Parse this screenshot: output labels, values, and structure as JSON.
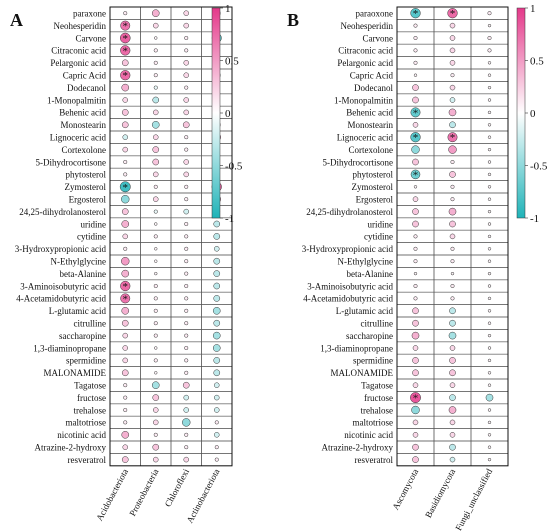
{
  "chart_data": [
    {
      "type": "heatmap",
      "panel_label": "A",
      "rows": [
        "paraxone",
        "Neohesperidin",
        "Carvone",
        "Citraconic acid",
        "Pelargonic acid",
        "Capric Acid",
        "Dodecanol",
        "1-Monopalmitin",
        "Behenic acid",
        "Monostearin",
        "Lignoceric acid",
        "Cortexolone",
        "5-Dihydrocortisone",
        "phytosterol",
        "Zymosterol",
        "Ergosterol",
        "24,25-dihydrolanosterol",
        "uridine",
        "cytidine",
        "3-Hydroxypropionic acid",
        "N-Ethylglycine",
        "beta-Alanine",
        "3-Aminoisobutyric acid",
        "4-Acetamidobutyric acid",
        "L-glutamic acid",
        "citrulline",
        "saccharopine",
        "1,3-diaminopropane",
        "spermidine",
        "MALONAMIDE",
        "Tagatose",
        "fructose",
        "trehalose",
        "maltotriose",
        "nicotinic acid",
        "Atrazine-2-hydroxy",
        "resveratrol"
      ],
      "columns": [
        "Acidobacteriota",
        "Proteobacteria",
        "Chloroflexi",
        "Actinobacteriota"
      ],
      "values": [
        [
          0.1,
          0.4,
          0.2,
          0.4
        ],
        [
          0.7,
          0.2,
          0.2,
          0.3
        ],
        [
          0.8,
          0.05,
          0.1,
          -0.7
        ],
        [
          0.75,
          0.1,
          0.1,
          0.3
        ],
        [
          0.3,
          0.1,
          0.2,
          0.1
        ],
        [
          0.75,
          0.1,
          0.2,
          -0.4
        ],
        [
          0.4,
          -0.1,
          0.1,
          0.2
        ],
        [
          0.2,
          -0.3,
          0.2,
          0.2
        ],
        [
          0.3,
          0.2,
          0.2,
          0.3
        ],
        [
          0.3,
          -0.4,
          0.3,
          0.4
        ],
        [
          -0.2,
          0.2,
          0.1,
          0.5
        ],
        [
          0.2,
          0.3,
          0.1,
          0.3
        ],
        [
          0.1,
          0.3,
          0.2,
          0.1
        ],
        [
          0.1,
          0.2,
          0.2,
          0.1
        ],
        [
          -0.85,
          0.1,
          0.1,
          0.75
        ],
        [
          -0.5,
          0.2,
          0.1,
          0.5
        ],
        [
          0.3,
          -0.1,
          -0.2,
          -0.3
        ],
        [
          0.4,
          0.05,
          0.1,
          -0.3
        ],
        [
          0.2,
          0.1,
          0.1,
          -0.3
        ],
        [
          0.1,
          0.05,
          0.1,
          -0.2
        ],
        [
          0.5,
          0.05,
          0.1,
          -0.3
        ],
        [
          0.4,
          0.05,
          0.1,
          -0.3
        ],
        [
          0.75,
          0.1,
          0.1,
          -0.3
        ],
        [
          0.7,
          0.1,
          0.1,
          -0.3
        ],
        [
          0.4,
          0.1,
          0.1,
          -0.4
        ],
        [
          0.3,
          0.1,
          0.1,
          -0.3
        ],
        [
          0.2,
          0.1,
          0.1,
          -0.4
        ],
        [
          0.2,
          0.05,
          0.1,
          -0.4
        ],
        [
          0.2,
          0.1,
          0.1,
          -0.3
        ],
        [
          0.3,
          0.05,
          0.1,
          -0.3
        ],
        [
          0.1,
          -0.4,
          0.3,
          -0.2
        ],
        [
          0.1,
          0.3,
          -0.2,
          -0.2
        ],
        [
          0.1,
          0.2,
          -0.2,
          -0.2
        ],
        [
          0.1,
          0.2,
          -0.5,
          0.1
        ],
        [
          0.4,
          0.1,
          0.1,
          -0.2
        ],
        [
          0.2,
          0.3,
          0.1,
          0.1
        ],
        [
          0.3,
          0.2,
          0.2,
          0.1
        ]
      ],
      "significant": [
        [
          false,
          false,
          false,
          false
        ],
        [
          true,
          false,
          false,
          false
        ],
        [
          true,
          false,
          false,
          true
        ],
        [
          true,
          false,
          false,
          false
        ],
        [
          false,
          false,
          false,
          false
        ],
        [
          true,
          false,
          false,
          false
        ],
        [
          false,
          false,
          false,
          false
        ],
        [
          false,
          false,
          false,
          false
        ],
        [
          false,
          false,
          false,
          false
        ],
        [
          false,
          false,
          false,
          false
        ],
        [
          false,
          false,
          false,
          false
        ],
        [
          false,
          false,
          false,
          false
        ],
        [
          false,
          false,
          false,
          false
        ],
        [
          false,
          false,
          false,
          false
        ],
        [
          true,
          false,
          false,
          true
        ],
        [
          false,
          false,
          false,
          false
        ],
        [
          false,
          false,
          false,
          false
        ],
        [
          false,
          false,
          false,
          false
        ],
        [
          false,
          false,
          false,
          false
        ],
        [
          false,
          false,
          false,
          false
        ],
        [
          false,
          false,
          false,
          false
        ],
        [
          false,
          false,
          false,
          false
        ],
        [
          true,
          false,
          false,
          false
        ],
        [
          true,
          false,
          false,
          false
        ],
        [
          false,
          false,
          false,
          false
        ],
        [
          false,
          false,
          false,
          false
        ],
        [
          false,
          false,
          false,
          false
        ],
        [
          false,
          false,
          false,
          false
        ],
        [
          false,
          false,
          false,
          false
        ],
        [
          false,
          false,
          false,
          false
        ],
        [
          false,
          false,
          false,
          false
        ],
        [
          false,
          false,
          false,
          false
        ],
        [
          false,
          false,
          false,
          false
        ],
        [
          false,
          false,
          false,
          false
        ],
        [
          false,
          false,
          false,
          false
        ],
        [
          false,
          false,
          false,
          false
        ],
        [
          false,
          false,
          false,
          false
        ]
      ],
      "colorbar": {
        "ticks": [
          1,
          0.5,
          0,
          -0.5,
          -1
        ],
        "tick_labels": [
          "1",
          "0.5",
          "0",
          "-0.5",
          "-1"
        ],
        "range": [
          -1,
          1
        ],
        "high_color": "#e4398a",
        "mid_color": "#ffffff",
        "low_color": "#1fb3b8"
      },
      "grid": true,
      "significance_marker": "*"
    },
    {
      "type": "heatmap",
      "panel_label": "B",
      "rows": [
        "paraoxone",
        "Neohesperidin",
        "Carvone",
        "Citraconic acid",
        "Pelargonic acid",
        "Capric Acid",
        "Dodecanol",
        "1-Monopalmitin",
        "Behenic acid",
        "Monostearin",
        "Lignoceric acid",
        "Cortexolone",
        "5-Dihydrocortisone",
        "phytosterol",
        "Zymosterol",
        "Ergosterol",
        "24,25-dihydrolanosterol",
        "uridine",
        "cytidine",
        "3-Hydroxypropionic acid",
        "N-Ethylglycine",
        "beta-Alanine",
        "3-Aminoisobutyric acid",
        "4-Acetamidobutyric acid",
        "L-glutamic acid",
        "citrulline",
        "saccharopine",
        "1,3-diaminopropane",
        "spermidine",
        "MALONAMIDE",
        "Tagatose",
        "fructose",
        "trehalose",
        "maltotriose",
        "nicotinic acid",
        "Atrazine-2-hydroxy",
        "resveratrol"
      ],
      "columns": [
        "Ascomycota",
        "Basidiomycota",
        "Fungi_unclassified"
      ],
      "values": [
        [
          -0.75,
          0.75,
          0.1
        ],
        [
          0.1,
          0.2,
          0.05
        ],
        [
          0.1,
          0.2,
          0.1
        ],
        [
          0.1,
          0.2,
          0.1
        ],
        [
          0.1,
          0.2,
          0.05
        ],
        [
          0.05,
          0.1,
          0.05
        ],
        [
          0.3,
          0.2,
          0.05
        ],
        [
          0.3,
          -0.2,
          0.05
        ],
        [
          -0.7,
          0.4,
          0.05
        ],
        [
          0.2,
          -0.3,
          0.05
        ],
        [
          -0.75,
          0.7,
          0.05
        ],
        [
          -0.5,
          0.5,
          0.05
        ],
        [
          0.3,
          0.1,
          0.05
        ],
        [
          -0.65,
          0.3,
          0.05
        ],
        [
          0.05,
          0.1,
          0.05
        ],
        [
          0.2,
          0.1,
          0.05
        ],
        [
          0.3,
          0.4,
          0.05
        ],
        [
          0.3,
          0.3,
          0.05
        ],
        [
          0.1,
          0.2,
          0.05
        ],
        [
          0.1,
          0.1,
          0.05
        ],
        [
          0.1,
          0.1,
          0.05
        ],
        [
          0.05,
          0.05,
          0.05
        ],
        [
          0.1,
          0.1,
          0.05
        ],
        [
          0.1,
          0.1,
          0.05
        ],
        [
          0.3,
          -0.3,
          0.05
        ],
        [
          0.3,
          -0.3,
          0.05
        ],
        [
          0.4,
          -0.4,
          0.05
        ],
        [
          0.2,
          0.2,
          0.05
        ],
        [
          0.3,
          0.3,
          0.05
        ],
        [
          0.3,
          0.3,
          0.05
        ],
        [
          0.2,
          0.2,
          0.05
        ],
        [
          0.85,
          -0.3,
          -0.4
        ],
        [
          -0.5,
          0.4,
          0.05
        ],
        [
          0.2,
          0.2,
          0.05
        ],
        [
          0.2,
          0.2,
          0.05
        ],
        [
          0.3,
          -0.3,
          0.05
        ],
        [
          0.3,
          -0.2,
          0.05
        ]
      ],
      "significant": [
        [
          true,
          true,
          false
        ],
        [
          false,
          false,
          false
        ],
        [
          false,
          false,
          false
        ],
        [
          false,
          false,
          false
        ],
        [
          false,
          false,
          false
        ],
        [
          false,
          false,
          false
        ],
        [
          false,
          false,
          false
        ],
        [
          false,
          false,
          false
        ],
        [
          true,
          false,
          false
        ],
        [
          false,
          false,
          false
        ],
        [
          true,
          true,
          false
        ],
        [
          false,
          false,
          false
        ],
        [
          false,
          false,
          false
        ],
        [
          true,
          false,
          false
        ],
        [
          false,
          false,
          false
        ],
        [
          false,
          false,
          false
        ],
        [
          false,
          false,
          false
        ],
        [
          false,
          false,
          false
        ],
        [
          false,
          false,
          false
        ],
        [
          false,
          false,
          false
        ],
        [
          false,
          false,
          false
        ],
        [
          false,
          false,
          false
        ],
        [
          false,
          false,
          false
        ],
        [
          false,
          false,
          false
        ],
        [
          false,
          false,
          false
        ],
        [
          false,
          false,
          false
        ],
        [
          false,
          false,
          false
        ],
        [
          false,
          false,
          false
        ],
        [
          false,
          false,
          false
        ],
        [
          false,
          false,
          false
        ],
        [
          false,
          false,
          false
        ],
        [
          true,
          false,
          false
        ],
        [
          false,
          false,
          false
        ],
        [
          false,
          false,
          false
        ],
        [
          false,
          false,
          false
        ],
        [
          false,
          false,
          false
        ],
        [
          false,
          false,
          false
        ]
      ],
      "colorbar": {
        "ticks": [
          1,
          0.5,
          0,
          -0.5,
          -1
        ],
        "tick_labels": [
          "1",
          "0.5",
          "0",
          "-0.5",
          "-1"
        ],
        "range": [
          -1,
          1
        ],
        "high_color": "#e4398a",
        "mid_color": "#ffffff",
        "low_color": "#1fb3b8"
      },
      "grid": true,
      "significance_marker": "*"
    }
  ]
}
